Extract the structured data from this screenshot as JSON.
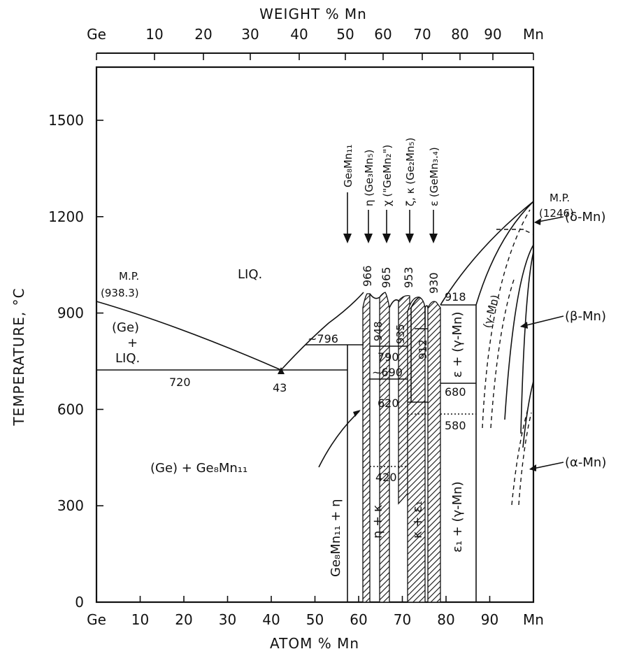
{
  "diagram": {
    "top_axis_title": "WEIGHT % Mn",
    "top_ticks": [
      "Ge",
      "10",
      "20",
      "30",
      "40",
      "50",
      "60",
      "70",
      "80",
      "90",
      "Mn"
    ],
    "bottom_axis_title": "ATOM % Mn",
    "bottom_ticks": [
      "Ge",
      "10",
      "20",
      "30",
      "40",
      "50",
      "60",
      "70",
      "80",
      "90",
      "Mn"
    ],
    "y_axis_title": "TEMPERATURE, °C",
    "y_ticks": [
      "0",
      "300",
      "600",
      "900",
      "1200",
      "1500"
    ],
    "liq": "LIQ.",
    "mp_ge_label": "M.P.",
    "mp_ge_value": "(938.3)",
    "mp_mn_label": "M.P.",
    "mp_mn_value": "(1246)",
    "ge_liq_1": "(Ge)",
    "ge_liq_2": "+",
    "ge_liq_3": "LIQ.",
    "temp_720": "720",
    "eutectic_comp": "43",
    "temp_796": "~796",
    "ge_gemn_region": "(Ge) + Ge₈Mn₁₁",
    "gemn_eta": "Ge₈Mn₁₁ + η",
    "eta_kappa": "η + κ",
    "kappa_eps": "κ + ε₁",
    "eps1_gamma": "ε₁ + (γ-Mn)",
    "eps_gamma": "ε + (γ-Mn)",
    "gamma_mn": "(γ-Mn)",
    "compounds": [
      {
        "label": "Ge₈Mn₁₁"
      },
      {
        "label": "η (Ge₃Mn₅)"
      },
      {
        "label": "χ (\"GeMn₂\")"
      },
      {
        "label": "ζ, κ (Ge₂Mn₅)"
      },
      {
        "label": "ε (GeMn₃.₄)"
      }
    ],
    "peak_temps": [
      "966",
      "965",
      "953",
      "930",
      "918"
    ],
    "inner_temps": [
      "948",
      "935",
      "912"
    ],
    "iso_temps": [
      "790",
      "~690",
      "620",
      "420",
      "680",
      "580"
    ],
    "mn_phases": [
      "(δ-Mn)",
      "(β-Mn)",
      "(α-Mn)"
    ]
  }
}
